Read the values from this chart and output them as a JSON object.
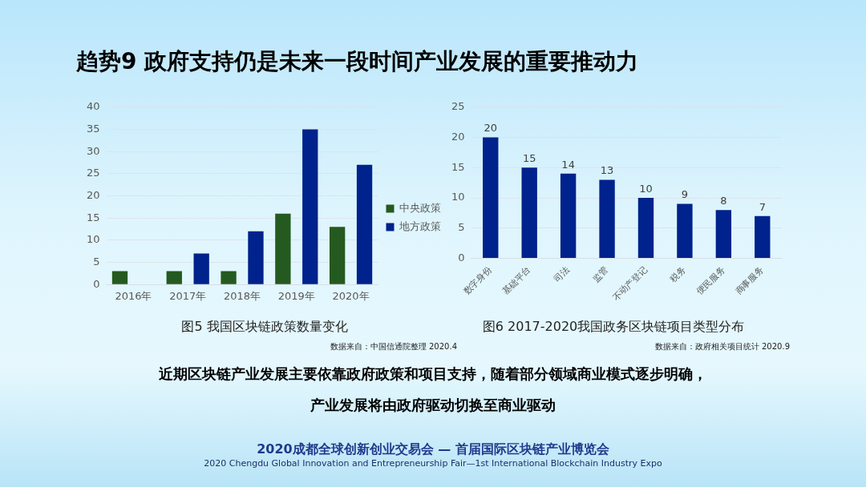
{
  "chart_data": [
    {
      "type": "other",
      "title": "趋势9 政府支持仍是未来一段时间产业发展的重要推动力",
      "annotations": [
        "近期区块链产业发展主要依靠政府政策和项目支持，随着部分领域商业模式逐步明确，",
        "产业发展将由政府驱动切换至商业驱动",
        "2020成都全球创新创业交易会 — 首届国际区块链产业博览会",
        "2020 Chengdu Global Innovation and Entrepreneurship Fair—1st International Blockchain Industry Expo"
      ]
    },
    {
      "type": "bar",
      "title": "图5 我国区块链政策数量变化",
      "categories": [
        "2016年",
        "2017年",
        "2018年",
        "2019年",
        "2020年"
      ],
      "series": [
        {
          "name": "中央政策",
          "color": "#245a1f",
          "values": [
            3,
            3,
            3,
            16,
            13
          ]
        },
        {
          "name": "地方政策",
          "color": "#00228c",
          "values": [
            0,
            7,
            12,
            35,
            27
          ]
        }
      ],
      "ylim": [
        0,
        40
      ],
      "yticks": [
        0,
        5,
        10,
        15,
        20,
        25,
        30,
        35,
        40
      ],
      "grid": "y",
      "legend": "right",
      "annotations": [
        "数据来自：中国信通院整理 2020.4"
      ]
    },
    {
      "type": "bar",
      "title": "图6 2017-2020我国政务区块链项目类型分布",
      "categories": [
        "数字身份",
        "基础平台",
        "司法",
        "监管",
        "不动产登记",
        "税务",
        "便民服务",
        "商事服务"
      ],
      "values": [
        20,
        15,
        14,
        13,
        10,
        9,
        8,
        7
      ],
      "color": "#00228c",
      "data_labels": true,
      "ylim": [
        0,
        25
      ],
      "yticks": [
        0,
        5,
        10,
        15,
        20,
        25
      ],
      "grid": "y",
      "annotations": [
        "数据来自：政府相关项目统计 2020.9"
      ]
    }
  ]
}
